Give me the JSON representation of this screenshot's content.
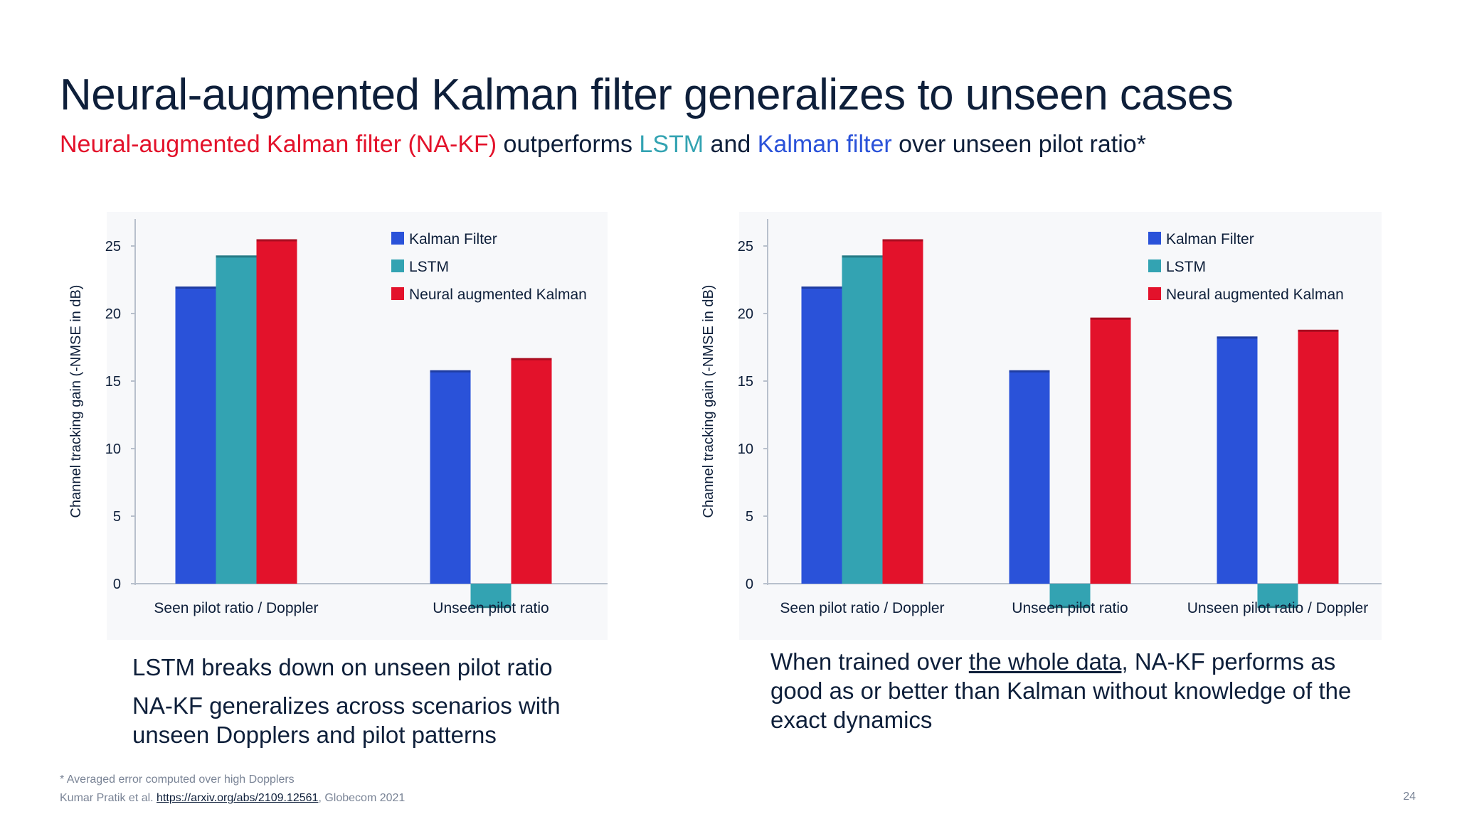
{
  "title": "Neural-augmented Kalman filter generalizes to unseen cases",
  "subtitle": {
    "part1": "Neural-augmented Kalman filter (NA-KF)",
    "part2": " outperforms ",
    "part3": "LSTM",
    "part4": " and ",
    "part5": "Kalman filter",
    "part6": " over unseen pilot ratio*"
  },
  "colors": {
    "title": "#0e1f3a",
    "nakf": "#e3122b",
    "lstm": "#33a3b2",
    "kalman": "#2a52d9"
  },
  "chart_data": [
    {
      "type": "bar",
      "categories": [
        "Seen pilot ratio / Doppler",
        "Unseen pilot ratio"
      ],
      "series": [
        {
          "name": "Kalman Filter",
          "color": "#2a52d9",
          "values": [
            22,
            15.8
          ]
        },
        {
          "name": "LSTM",
          "color": "#33a3b2",
          "values": [
            24.3,
            -1.8
          ]
        },
        {
          "name": "Neural augmented Kalman",
          "color": "#e3122b",
          "values": [
            25.5,
            16.7
          ]
        }
      ],
      "ylabel": "Channel tracking gain (-NMSE in dB)",
      "yticks": [
        0,
        5,
        10,
        15,
        20,
        25
      ],
      "ylim": [
        -2,
        27
      ],
      "legend": "top-right"
    },
    {
      "type": "bar",
      "categories": [
        "Seen pilot ratio / Doppler",
        "Unseen pilot ratio",
        "Unseen pilot ratio / Doppler"
      ],
      "series": [
        {
          "name": "Kalman Filter",
          "color": "#2a52d9",
          "values": [
            22,
            15.8,
            18.3
          ]
        },
        {
          "name": "LSTM",
          "color": "#33a3b2",
          "values": [
            24.3,
            -1.8,
            -1.8
          ]
        },
        {
          "name": "Neural augmented Kalman",
          "color": "#e3122b",
          "values": [
            25.5,
            19.7,
            18.8
          ]
        }
      ],
      "ylabel": "Channel tracking gain (-NMSE in dB)",
      "yticks": [
        0,
        5,
        10,
        15,
        20,
        25
      ],
      "ylim": [
        -2,
        27
      ],
      "legend": "top-right"
    }
  ],
  "caption_left": {
    "line1": "LSTM breaks down on unseen pilot ratio",
    "line2": "NA-KF generalizes across scenarios with unseen Dopplers and pilot patterns"
  },
  "caption_right": {
    "pre": "When trained over ",
    "underlined": "the whole data",
    "post": ", NA-KF performs as good as or better than Kalman without knowledge of the exact dynamics"
  },
  "footnote": {
    "note": "* Averaged error computed over high Dopplers",
    "ref_pre": "Kumar Pratik et al. ",
    "ref_link": "https://arxiv.org/abs/2109.12561",
    "ref_post": ", Globecom 2021"
  },
  "page_number": "24"
}
